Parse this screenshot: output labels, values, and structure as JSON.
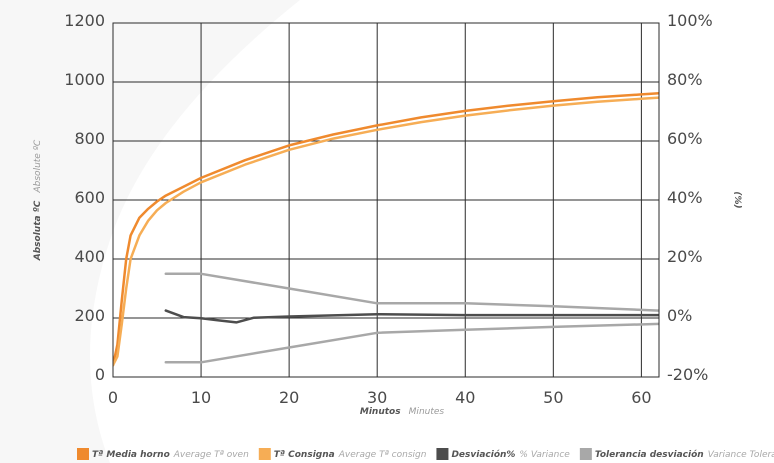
{
  "chart_data": {
    "type": "line",
    "title": "",
    "xlabel": "Minutos",
    "xlabel_sub": "Minutes",
    "ylabel": "Absoluta ºC",
    "ylabel_sub": "Absolute ºC",
    "y2label": "(%)",
    "xlim": [
      0,
      62
    ],
    "ylim": [
      0,
      1200
    ],
    "y2lim": [
      -20,
      100
    ],
    "x_ticks": [
      "0",
      "10",
      "20",
      "30",
      "40",
      "50",
      "60"
    ],
    "y_ticks": [
      "0",
      "200",
      "400",
      "600",
      "800",
      "1000",
      "1200"
    ],
    "y2_ticks": [
      "-20%",
      "0%",
      "20%",
      "40%",
      "60%",
      "80%",
      "100%"
    ],
    "grid": true,
    "legend_position": "bottom-right",
    "series": [
      {
        "name": "Tª Media horno",
        "name_sub": "Average Tª oven",
        "axis": "left",
        "color": "#ef8a2e",
        "points": [
          [
            0,
            40
          ],
          [
            0.5,
            110
          ],
          [
            1,
            260
          ],
          [
            1.5,
            400
          ],
          [
            2,
            480
          ],
          [
            3,
            540
          ],
          [
            4,
            570
          ],
          [
            5,
            595
          ],
          [
            6,
            615
          ],
          [
            8,
            645
          ],
          [
            10,
            675
          ],
          [
            15,
            735
          ],
          [
            20,
            785
          ],
          [
            25,
            822
          ],
          [
            30,
            853
          ],
          [
            35,
            880
          ],
          [
            40,
            902
          ],
          [
            45,
            920
          ],
          [
            50,
            935
          ],
          [
            55,
            948
          ],
          [
            60,
            958
          ],
          [
            62,
            962
          ]
        ]
      },
      {
        "name": "Tª Consigna",
        "name_sub": "Average Tª consign",
        "axis": "left",
        "color": "#f6ad55",
        "points": [
          [
            0,
            40
          ],
          [
            0.5,
            70
          ],
          [
            1,
            180
          ],
          [
            1.5,
            300
          ],
          [
            2,
            400
          ],
          [
            3,
            480
          ],
          [
            4,
            530
          ],
          [
            5,
            565
          ],
          [
            6,
            590
          ],
          [
            8,
            628
          ],
          [
            10,
            660
          ],
          [
            15,
            720
          ],
          [
            20,
            770
          ],
          [
            25,
            808
          ],
          [
            30,
            838
          ],
          [
            35,
            864
          ],
          [
            40,
            886
          ],
          [
            45,
            904
          ],
          [
            50,
            920
          ],
          [
            55,
            933
          ],
          [
            60,
            943
          ],
          [
            62,
            947
          ]
        ]
      },
      {
        "name": "Desviación%",
        "name_sub": "% Variance",
        "axis": "right",
        "color": "#4d4d4d",
        "points": [
          [
            6,
            2.5
          ],
          [
            8,
            0.3
          ],
          [
            10,
            -0.1
          ],
          [
            12,
            -0.8
          ],
          [
            14,
            -1.5
          ],
          [
            16,
            0.1
          ],
          [
            20,
            0.5
          ],
          [
            30,
            1.3
          ],
          [
            40,
            1.0
          ],
          [
            50,
            1.0
          ],
          [
            62,
            1.0
          ]
        ]
      },
      {
        "name": "Tolerancia desviación",
        "name_sub": "Variance Tolerance",
        "axis": "right",
        "color": "#a8a8a8",
        "points": [
          [
            6,
            15
          ],
          [
            10,
            15
          ],
          [
            20,
            10
          ],
          [
            30,
            5
          ],
          [
            40,
            5
          ],
          [
            50,
            4
          ],
          [
            62,
            2.5
          ]
        ]
      },
      {
        "name": "Tolerancia desviación",
        "name_sub": "Variance Tolerance",
        "axis": "right",
        "color": "#a8a8a8",
        "points": [
          [
            6,
            -15
          ],
          [
            10,
            -15
          ],
          [
            20,
            -10
          ],
          [
            30,
            -5
          ],
          [
            40,
            -4
          ],
          [
            50,
            -3
          ],
          [
            62,
            -2
          ]
        ]
      }
    ]
  }
}
